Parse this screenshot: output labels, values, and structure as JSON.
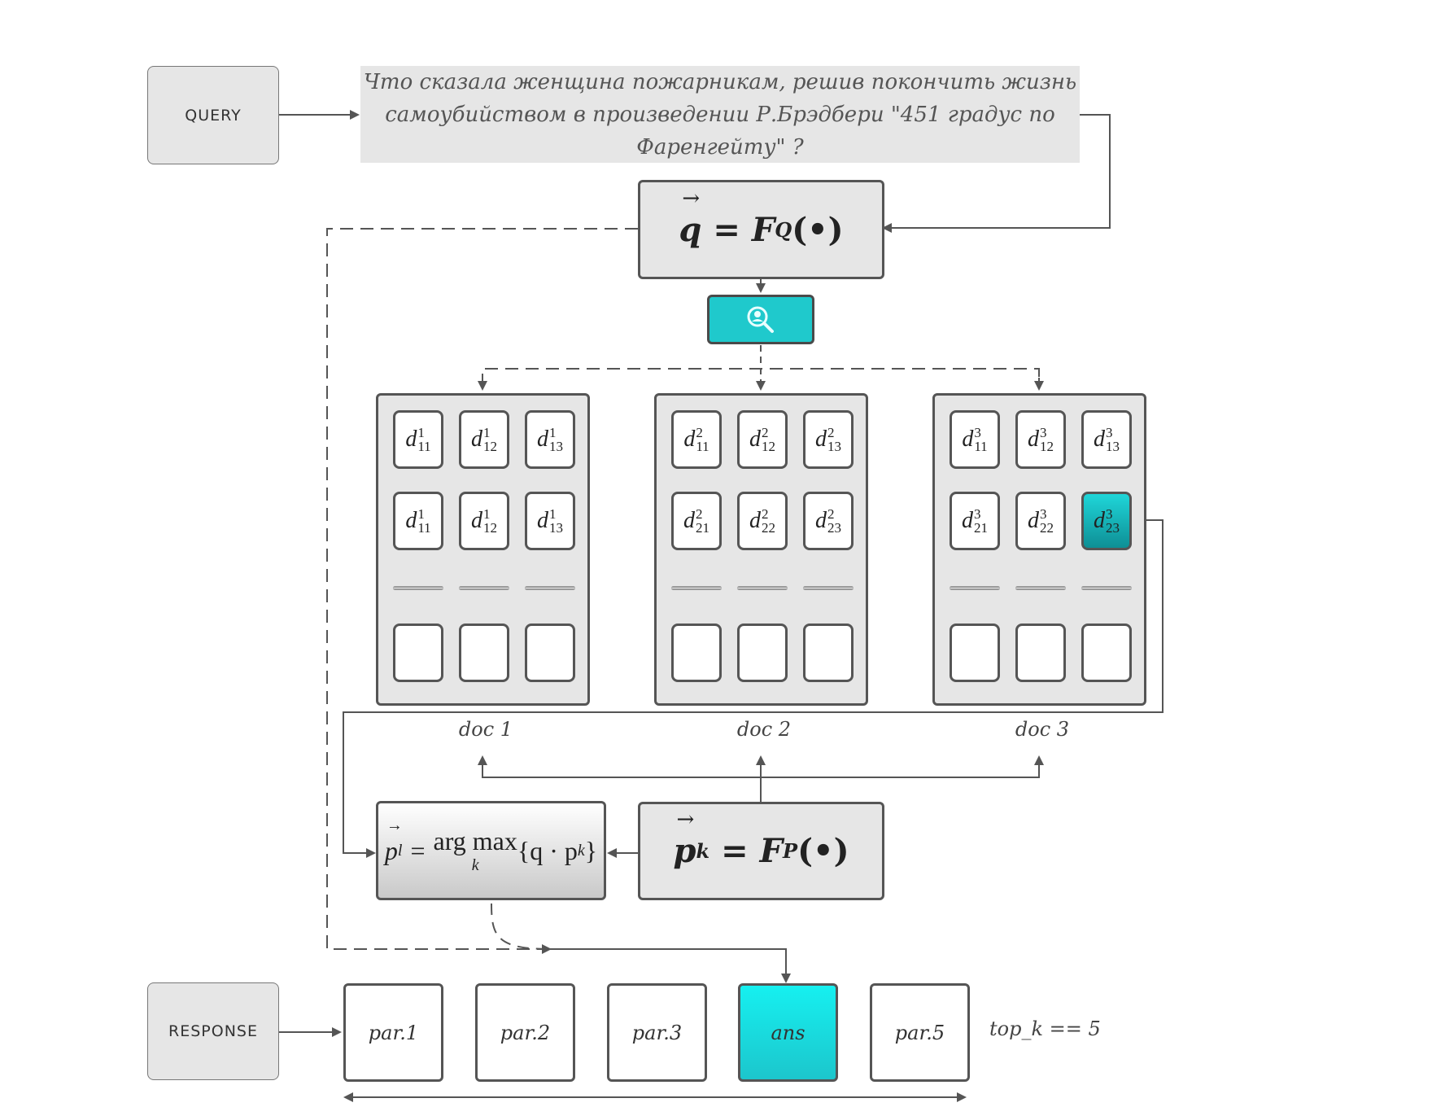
{
  "query_box": {
    "label": "QUERY"
  },
  "query_text": {
    "line1": "Что сказала женщина пожарникам, решив покончить жизнь",
    "line2": "самоубийством в произведении Р.Брэдбери \"451 градус по Фаренгейту\" ?"
  },
  "query_encoder": {
    "lhs": "q",
    "eq": "=",
    "func": "F",
    "sub": "Q",
    "arg": "(•)"
  },
  "search_button": {
    "icon": "search-icon"
  },
  "docs": [
    {
      "label": "doc 1",
      "cells": [
        {
          "sup": "1",
          "sub": "11"
        },
        {
          "sup": "1",
          "sub": "12"
        },
        {
          "sup": "1",
          "sub": "13"
        },
        {
          "sup": "1",
          "sub": "11"
        },
        {
          "sup": "1",
          "sub": "12"
        },
        {
          "sup": "1",
          "sub": "13"
        }
      ]
    },
    {
      "label": "doc 2",
      "cells": [
        {
          "sup": "2",
          "sub": "11"
        },
        {
          "sup": "2",
          "sub": "12"
        },
        {
          "sup": "2",
          "sub": "13"
        },
        {
          "sup": "2",
          "sub": "21"
        },
        {
          "sup": "2",
          "sub": "22"
        },
        {
          "sup": "2",
          "sub": "23"
        }
      ]
    },
    {
      "label": "doc 3",
      "cells": [
        {
          "sup": "3",
          "sub": "11"
        },
        {
          "sup": "3",
          "sub": "12"
        },
        {
          "sup": "3",
          "sub": "13"
        },
        {
          "sup": "3",
          "sub": "21"
        },
        {
          "sup": "3",
          "sub": "22"
        },
        {
          "sup": "3",
          "sub": "23"
        }
      ],
      "highlighted_cell": 5
    }
  ],
  "argmax": {
    "lhs": "p",
    "lhs_sub": "l",
    "eq": "=",
    "op": "arg max",
    "op_sub": "k",
    "expr": "{q · p",
    "expr_sub": "k",
    "close": "}"
  },
  "passage_encoder": {
    "lhs": "p",
    "lhs_sub": "k",
    "eq": "=",
    "func": "F",
    "sub": "P",
    "arg": "(•)"
  },
  "response_box": {
    "label": "RESPONSE"
  },
  "passages": [
    {
      "label": "par.1",
      "highlighted": false
    },
    {
      "label": "par.2",
      "highlighted": false
    },
    {
      "label": "par.3",
      "highlighted": false
    },
    {
      "label": "ans",
      "highlighted": true
    },
    {
      "label": "par.5",
      "highlighted": false
    }
  ],
  "top_k": "top_k == 5",
  "colors": {
    "accent": "#1fc9cc",
    "box": "#e6e6e6",
    "border": "#555555"
  }
}
